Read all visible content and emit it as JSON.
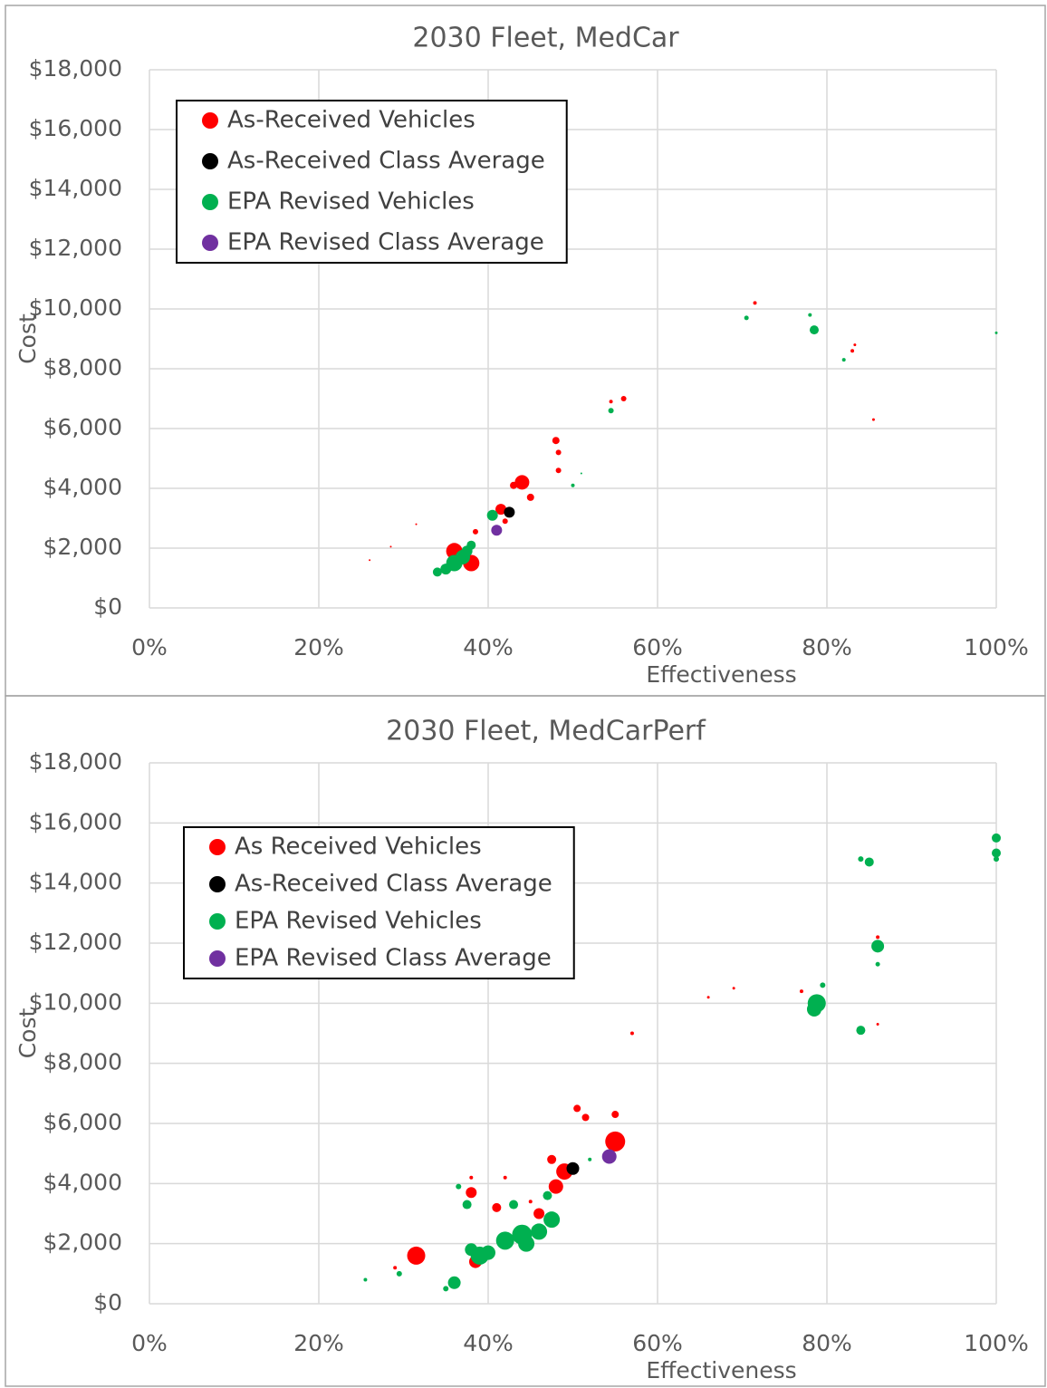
{
  "chart_data": [
    {
      "type": "bubble",
      "title": "2030 Fleet, MedCar",
      "xlabel": "Effectiveness",
      "ylabel": "Cost",
      "xlim": [
        0,
        100
      ],
      "ylim": [
        0,
        18000
      ],
      "grid": true,
      "legend": "upper left",
      "xticks": [
        {
          "value": 0,
          "label": "0%"
        },
        {
          "value": 20,
          "label": "20%"
        },
        {
          "value": 40,
          "label": "40%"
        },
        {
          "value": 60,
          "label": "60%"
        },
        {
          "value": 80,
          "label": "80%"
        },
        {
          "value": 100,
          "label": "100%"
        }
      ],
      "yticks": [
        {
          "value": 0,
          "label": "$0"
        },
        {
          "value": 2000,
          "label": "$2,000"
        },
        {
          "value": 4000,
          "label": "$4,000"
        },
        {
          "value": 6000,
          "label": "$6,000"
        },
        {
          "value": 8000,
          "label": "$8,000"
        },
        {
          "value": 10000,
          "label": "$10,000"
        },
        {
          "value": 12000,
          "label": "$12,000"
        },
        {
          "value": 14000,
          "label": "$14,000"
        },
        {
          "value": 16000,
          "label": "$16,000"
        },
        {
          "value": 18000,
          "label": "$18,000"
        }
      ],
      "series": [
        {
          "name": "As-Received Vehicles",
          "color": "#ff0000",
          "x": [
            36,
            38,
            28.5,
            31.5,
            38.5,
            41.5,
            42,
            44,
            45,
            48,
            48.3,
            48.3,
            54.5,
            56,
            71.5,
            83,
            83.3,
            85.5,
            26,
            43
          ],
          "values": [
            1900,
            1500,
            2050,
            2800,
            2550,
            3300,
            2900,
            4200,
            3700,
            5600,
            5200,
            4600,
            6900,
            7000,
            10200,
            8600,
            8800,
            6300,
            1600,
            4100
          ],
          "sizes": [
            9,
            9,
            1,
            1,
            3,
            6,
            3,
            8,
            4,
            4,
            3,
            3,
            2,
            3,
            2,
            2,
            1.5,
            1.5,
            1,
            4
          ]
        },
        {
          "name": "As-Received Class Average",
          "color": "#000000",
          "x": [
            42.5
          ],
          "values": [
            3200
          ],
          "sizes": [
            6
          ]
        },
        {
          "name": "EPA Revised Vehicles",
          "color": "#00b050",
          "x": [
            35,
            36,
            37,
            38,
            40.5,
            50,
            51,
            54.5,
            70.5,
            78,
            78.5,
            82,
            100,
            34,
            37.5
          ],
          "values": [
            1300,
            1500,
            1700,
            2100,
            3100,
            4100,
            4500,
            6600,
            9700,
            9800,
            9300,
            8300,
            9200,
            1200,
            1900
          ],
          "sizes": [
            6,
            9,
            8,
            5,
            6,
            2,
            1,
            3,
            2.5,
            2,
            5,
            2,
            1.5,
            5,
            6
          ]
        },
        {
          "name": "EPA Revised Class Average",
          "color": "#7030a0",
          "x": [
            41
          ],
          "values": [
            2600
          ],
          "sizes": [
            6
          ]
        }
      ]
    },
    {
      "type": "bubble",
      "title": "2030 Fleet, MedCarPerf",
      "xlabel": "Effectiveness",
      "ylabel": "Cost",
      "xlim": [
        0,
        100
      ],
      "ylim": [
        0,
        18000
      ],
      "grid": true,
      "legend": "upper left",
      "xticks": [
        {
          "value": 0,
          "label": "0%"
        },
        {
          "value": 20,
          "label": "20%"
        },
        {
          "value": 40,
          "label": "40%"
        },
        {
          "value": 60,
          "label": "60%"
        },
        {
          "value": 80,
          "label": "80%"
        },
        {
          "value": 100,
          "label": "100%"
        }
      ],
      "yticks": [
        {
          "value": 0,
          "label": "$0"
        },
        {
          "value": 2000,
          "label": "$2,000"
        },
        {
          "value": 4000,
          "label": "$4,000"
        },
        {
          "value": 6000,
          "label": "$6,000"
        },
        {
          "value": 8000,
          "label": "$8,000"
        },
        {
          "value": 10000,
          "label": "$10,000"
        },
        {
          "value": 12000,
          "label": "$12,000"
        },
        {
          "value": 14000,
          "label": "$14,000"
        },
        {
          "value": 16000,
          "label": "$16,000"
        },
        {
          "value": 18000,
          "label": "$18,000"
        }
      ],
      "series": [
        {
          "name": "As Received Vehicles",
          "color": "#ff0000",
          "x": [
            31.5,
            38.5,
            38,
            38,
            41,
            44,
            46,
            47.5,
            48,
            49,
            50.5,
            51.5,
            55,
            55,
            57,
            69,
            66,
            77,
            86,
            86,
            29,
            42,
            45
          ],
          "values": [
            1600,
            1400,
            3700,
            4200,
            3200,
            2500,
            3000,
            4800,
            3900,
            4400,
            6500,
            6200,
            5400,
            6300,
            9000,
            10500,
            10200,
            10400,
            12200,
            9300,
            1200,
            4200,
            3400
          ],
          "sizes": [
            10,
            7,
            6,
            2,
            5,
            4,
            6,
            5,
            8,
            9,
            4,
            4,
            11,
            4,
            2,
            1.5,
            1.5,
            2,
            2,
            1.5,
            2,
            2,
            2
          ]
        },
        {
          "name": "As-Received Class Average",
          "color": "#000000",
          "x": [
            50
          ],
          "values": [
            4500
          ],
          "sizes": [
            7
          ]
        },
        {
          "name": "EPA Revised Vehicles",
          "color": "#00b050",
          "x": [
            36,
            35,
            29.5,
            25.5,
            38,
            39,
            40,
            42,
            44,
            44.5,
            46,
            47.5,
            43,
            37.5,
            36.5,
            47,
            78.8,
            78.5,
            79.5,
            84,
            85,
            84,
            86,
            86,
            100,
            100,
            100,
            52
          ],
          "values": [
            700,
            500,
            1000,
            800,
            1800,
            1600,
            1700,
            2100,
            2300,
            2000,
            2400,
            2800,
            3300,
            3300,
            3900,
            3600,
            10000,
            9800,
            10600,
            9100,
            14700,
            14800,
            11900,
            11300,
            15500,
            15000,
            14800,
            4800
          ],
          "sizes": [
            7,
            3,
            3,
            2,
            7,
            10,
            8,
            10,
            11,
            9,
            9,
            9,
            5,
            5,
            3,
            5,
            10,
            8,
            3,
            5,
            5,
            3,
            7,
            2.5,
            5,
            5,
            3,
            2
          ]
        },
        {
          "name": "EPA Revised Class Average",
          "color": "#7030a0",
          "x": [
            54.3
          ],
          "values": [
            4900
          ],
          "sizes": [
            8
          ]
        }
      ]
    }
  ]
}
